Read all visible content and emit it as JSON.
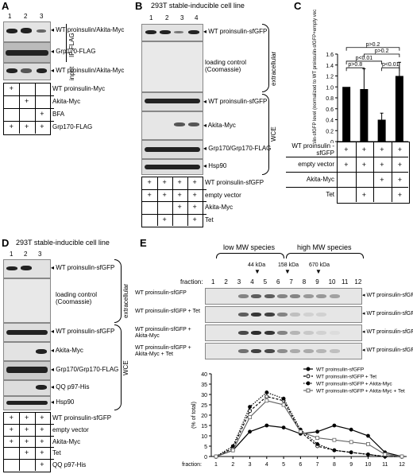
{
  "panelA": {
    "label": "A",
    "lanes": [
      "1",
      "2",
      "3"
    ],
    "blot_labels": [
      "WT proinsulin/Akita-Myc",
      "Grp170-FLAG",
      "WT proinsulin/Akita-Myc"
    ],
    "side_labels": [
      "IP:FLAG",
      "input"
    ],
    "rows": [
      "WT proinsulin-Myc",
      "Akita-Myc",
      "BFA",
      "Grp170-FLAG"
    ],
    "grid": [
      [
        "+",
        "",
        ""
      ],
      [
        "",
        "+",
        ""
      ],
      [
        "",
        "",
        "+"
      ],
      [
        "+",
        "+",
        "+"
      ]
    ]
  },
  "panelB": {
    "label": "B",
    "title": "293T stable-inducible cell line",
    "lanes": [
      "1",
      "2",
      "3",
      "4"
    ],
    "blot_labels": [
      "WT proinsulin-sfGFP",
      "loading control (Coomassie)",
      "WT proinsulin-sfGFP",
      "Akita-Myc",
      "Grp170/Grp170-FLAG",
      "Hsp90"
    ],
    "side_labels": [
      "extracellular",
      "WCE"
    ],
    "rows": [
      "WT proinsulin-sfGFP",
      "empty vector",
      "Akita-Myc",
      "Tet"
    ],
    "grid": [
      [
        "+",
        "+",
        "+",
        "+"
      ],
      [
        "+",
        "+",
        "+",
        "+"
      ],
      [
        "",
        "",
        "+",
        "+"
      ],
      [
        "",
        "+",
        "",
        "+"
      ]
    ]
  },
  "panelC": {
    "label": "C",
    "rows": [
      "WT proinsulin -sfGFP",
      "empty vector",
      "Akita-Myc",
      "Tet"
    ],
    "grid": [
      [
        "+",
        "+",
        "+",
        "+"
      ],
      [
        "+",
        "+",
        "+",
        "+"
      ],
      [
        "",
        "",
        "+",
        "+"
      ],
      [
        "",
        "+",
        "",
        "+"
      ]
    ]
  },
  "chart_data": [
    {
      "type": "bar",
      "title": "",
      "ylabel": "extracellular WT proinsulin-sfGFP level (normalized to WT proinsulin-sfGFP+empty vector)",
      "ylim": [
        0,
        1.6
      ],
      "yticks": [
        "0",
        "0.2",
        "0.4",
        "0.6",
        "0.8",
        "1.0",
        "1.2",
        "1.4",
        "1.6"
      ],
      "categories": [
        "1",
        "2",
        "3",
        "4"
      ],
      "values": [
        1.0,
        0.96,
        0.4,
        1.2
      ],
      "errors": [
        0,
        0.37,
        0.12,
        0.25
      ],
      "significance": [
        "p>0.8",
        "p<0.01",
        "p<0.01",
        "p>0.2",
        "p>0.2"
      ]
    },
    {
      "type": "line",
      "xlabel": "fraction:",
      "ylabel": "(% of total)",
      "ylim": [
        0,
        40
      ],
      "yticks": [
        "0",
        "5",
        "10",
        "15",
        "20",
        "25",
        "30",
        "35",
        "40"
      ],
      "x": [
        1,
        2,
        3,
        4,
        5,
        6,
        7,
        8,
        9,
        10,
        11,
        12
      ],
      "series": [
        {
          "name": "WT proinsulin-sfGFP",
          "values": [
            0,
            3,
            12,
            15,
            14,
            11,
            12,
            15,
            13,
            10,
            2,
            0
          ]
        },
        {
          "name": "WT proinsulin-sfGFP + Tet",
          "values": [
            0,
            4,
            22,
            29,
            27,
            12,
            5,
            3,
            2,
            1,
            0,
            0
          ]
        },
        {
          "name": "WT proinsulin-sfGFP + Akita-Myc",
          "values": [
            0,
            5,
            24,
            31,
            28,
            13,
            6,
            3,
            2,
            1,
            0,
            0
          ]
        },
        {
          "name": "WT proinsulin-sfGFP + Akita-Myc + Tet",
          "values": [
            0,
            3,
            19,
            27,
            25,
            12,
            9,
            8,
            7,
            6,
            1,
            0
          ]
        }
      ]
    }
  ],
  "panelD": {
    "label": "D",
    "title": "293T stable-inducible cell line",
    "lanes": [
      "1",
      "2",
      "3"
    ],
    "blot_labels": [
      "WT proinsulin-sfGFP",
      "loading control (Coomassie)",
      "WT proinsulin-sfGFP",
      "Akita-Myc",
      "Grp170/Grp170-FLAG",
      "QQ p97-His",
      "Hsp90"
    ],
    "side_labels": [
      "extracellular",
      "WCE"
    ],
    "rows": [
      "WT proinsulin-sfGFP",
      "empty vector",
      "Akita-Myc",
      "Tet",
      "QQ p97-His"
    ],
    "grid": [
      [
        "+",
        "+",
        "+"
      ],
      [
        "+",
        "+",
        "+"
      ],
      [
        "+",
        "+",
        "+"
      ],
      [
        "",
        "+",
        "+"
      ],
      [
        "",
        "",
        "+"
      ]
    ]
  },
  "panelE": {
    "label": "E",
    "species": [
      "low MW species",
      "high MW species"
    ],
    "markers": [
      "44 kDa",
      "158 kDa",
      "670 kDa"
    ],
    "fraction_label": "fraction:",
    "fractions": [
      "1",
      "2",
      "3",
      "4",
      "5",
      "6",
      "7",
      "8",
      "9",
      "10",
      "11",
      "12"
    ],
    "blot_rows": [
      {
        "left": "WT proinsulin-sfGFP",
        "right": "WT proinsulin-sfGFP"
      },
      {
        "left": "WT proinsulin-sfGFP + Tet",
        "right": "WT proinsulin-sfGFP"
      },
      {
        "left": "WT proinsulin-sfGFP + Akita-Myc",
        "right": "WT proinsulin-sfGFP"
      },
      {
        "left": "WT proinsulin-sfGFP + Akita-Myc + Tet",
        "right": "WT proinsulin-sfGFP"
      }
    ]
  }
}
